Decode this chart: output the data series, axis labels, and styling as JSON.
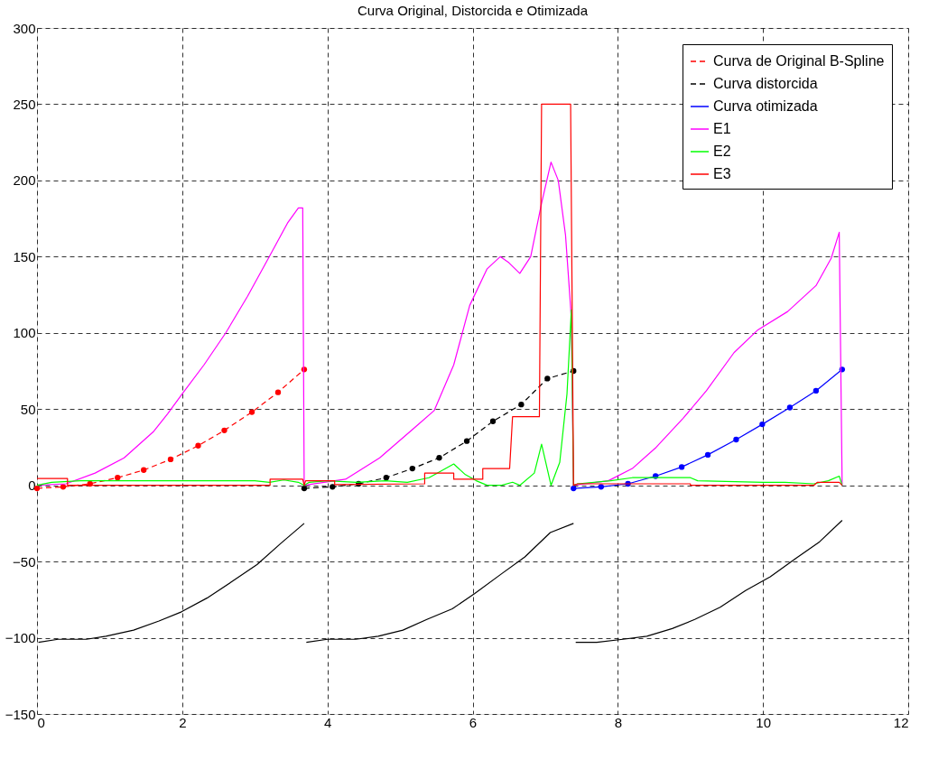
{
  "chart_data": {
    "type": "line",
    "title": "Curva Original, Distorcida e Otimizada",
    "xlim": [
      0,
      12
    ],
    "xticks": [
      0,
      2,
      4,
      6,
      8,
      10,
      12
    ],
    "ylim": [
      -150,
      300
    ],
    "yticks": [
      -150,
      -100,
      -50,
      0,
      50,
      100,
      150,
      200,
      250,
      300
    ],
    "grid": true,
    "legend": "top right",
    "series": [
      {
        "name": "Curva de Original B-Spline",
        "color": "#ff0000",
        "line_style": "dashed",
        "marker": "circle",
        "x": [
          0,
          0.36,
          0.73,
          1.11,
          1.47,
          1.84,
          2.22,
          2.58,
          2.96,
          3.32,
          3.68
        ],
        "values": [
          -2,
          -1,
          1,
          5,
          10,
          17,
          26,
          36,
          48,
          61,
          76
        ]
      },
      {
        "name": "Curva distorcida",
        "color": "#000000",
        "line_style": "dashed",
        "marker": "circle",
        "x": [
          3.68,
          4.07,
          4.43,
          4.81,
          5.17,
          5.54,
          5.92,
          6.28,
          6.67,
          7.03,
          7.39
        ],
        "values": [
          -2,
          -1,
          1,
          5,
          11,
          18,
          29,
          42,
          53,
          70,
          75
        ]
      },
      {
        "name": "Curva otimizada",
        "color": "#0000ff",
        "line_style": "solid",
        "marker": "circle",
        "x": [
          7.39,
          7.77,
          8.14,
          8.52,
          8.88,
          9.24,
          9.63,
          9.99,
          10.37,
          10.73,
          11.09
        ],
        "values": [
          -2,
          -1,
          1,
          6,
          12,
          20,
          30,
          40,
          51,
          62,
          76
        ]
      },
      {
        "name": "E1",
        "color": "#ff00ff",
        "line_style": "solid",
        "marker": "none",
        "x": [
          0,
          0.4,
          0.8,
          1.2,
          1.6,
          1.8,
          2.0,
          2.3,
          2.6,
          2.9,
          3.2,
          3.45,
          3.6,
          3.66,
          3.68,
          4.25,
          4.72,
          5.23,
          5.47,
          5.74,
          5.96,
          6.2,
          6.38,
          6.5,
          6.65,
          6.8,
          6.95,
          7.08,
          7.18,
          7.28,
          7.36,
          7.39,
          7.87,
          8.2,
          8.53,
          8.9,
          9.22,
          9.6,
          9.93,
          10.34,
          10.73,
          10.94,
          11.05,
          11.09
        ],
        "values": [
          0,
          1,
          8,
          18,
          35,
          47,
          60,
          79,
          100,
          124,
          150,
          172,
          182,
          182,
          0,
          4,
          18,
          39,
          49,
          79,
          118,
          142,
          150,
          146,
          139,
          150,
          185,
          212,
          200,
          164,
          110,
          0,
          3,
          11,
          25,
          44,
          62,
          87,
          102,
          114,
          131,
          149,
          166,
          0
        ]
      },
      {
        "name": "E2",
        "color": "#00ff00",
        "line_style": "solid",
        "marker": "none",
        "x": [
          0,
          0.2,
          0.6,
          1.0,
          2.0,
          3.0,
          3.2,
          3.4,
          3.6,
          3.68,
          3.75,
          4.0,
          4.4,
          4.8,
          5.1,
          5.4,
          5.74,
          5.9,
          6.05,
          6.2,
          6.4,
          6.55,
          6.65,
          6.85,
          6.95,
          7.08,
          7.2,
          7.3,
          7.36,
          7.39,
          7.45,
          7.9,
          8.2,
          9.0,
          9.1,
          10.0,
          10.3,
          10.7,
          10.9,
          11.05,
          11.09
        ],
        "values": [
          0,
          2,
          3,
          3,
          3,
          3,
          2,
          3.5,
          2,
          0,
          2,
          3,
          2,
          3,
          2,
          5,
          14,
          7,
          3,
          0,
          0,
          2,
          0,
          8,
          27,
          0,
          15,
          60,
          115,
          0,
          1,
          3,
          5,
          5,
          3,
          2,
          2,
          1,
          3,
          6,
          0
        ]
      },
      {
        "name": "E3",
        "color": "#ff0000",
        "line_style": "solid",
        "marker": "none",
        "x": [
          0,
          0.42,
          0.42,
          3.21,
          3.21,
          3.66,
          3.68,
          3.7,
          4.1,
          4.1,
          5.34,
          5.34,
          5.74,
          5.74,
          6.14,
          6.14,
          6.51,
          6.55,
          6.92,
          6.95,
          7.35,
          7.39,
          7.45,
          9.0,
          9.0,
          10.7,
          10.75,
          11.05,
          11.09
        ],
        "values": [
          4.5,
          4.5,
          0,
          0,
          4,
          4,
          0,
          3,
          3,
          0.5,
          1,
          8,
          8,
          4,
          4,
          11,
          11,
          45,
          45,
          250,
          250,
          0,
          1,
          1,
          0,
          0,
          2,
          2,
          0
        ]
      },
      {
        "color": "#000000",
        "line_style": "solid",
        "marker": "none",
        "x": [
          0.02,
          0.29,
          0.68,
          0.95,
          1.33,
          1.68,
          1.99,
          2.34,
          2.69,
          3.03,
          3.36,
          3.68,
          null,
          3.71,
          4.0,
          4.39,
          4.7,
          5.04,
          5.37,
          5.72,
          6.03,
          6.4,
          6.72,
          7.07,
          7.39,
          null,
          7.42,
          7.71,
          8.07,
          8.4,
          8.75,
          9.06,
          9.41,
          9.76,
          10.1,
          10.45,
          10.78,
          11.09
        ],
        "values": [
          -103,
          -101,
          -101,
          -99,
          -95,
          -89,
          -83,
          -74,
          -63,
          -52,
          -38,
          -25,
          null,
          -103,
          -101,
          -101,
          -99,
          -95,
          -88,
          -81,
          -71,
          -58,
          -47,
          -31,
          -25,
          null,
          -103,
          -103,
          -101,
          -99,
          -94,
          -88,
          -80,
          -69,
          -60,
          -48,
          -37,
          -23
        ]
      }
    ]
  }
}
